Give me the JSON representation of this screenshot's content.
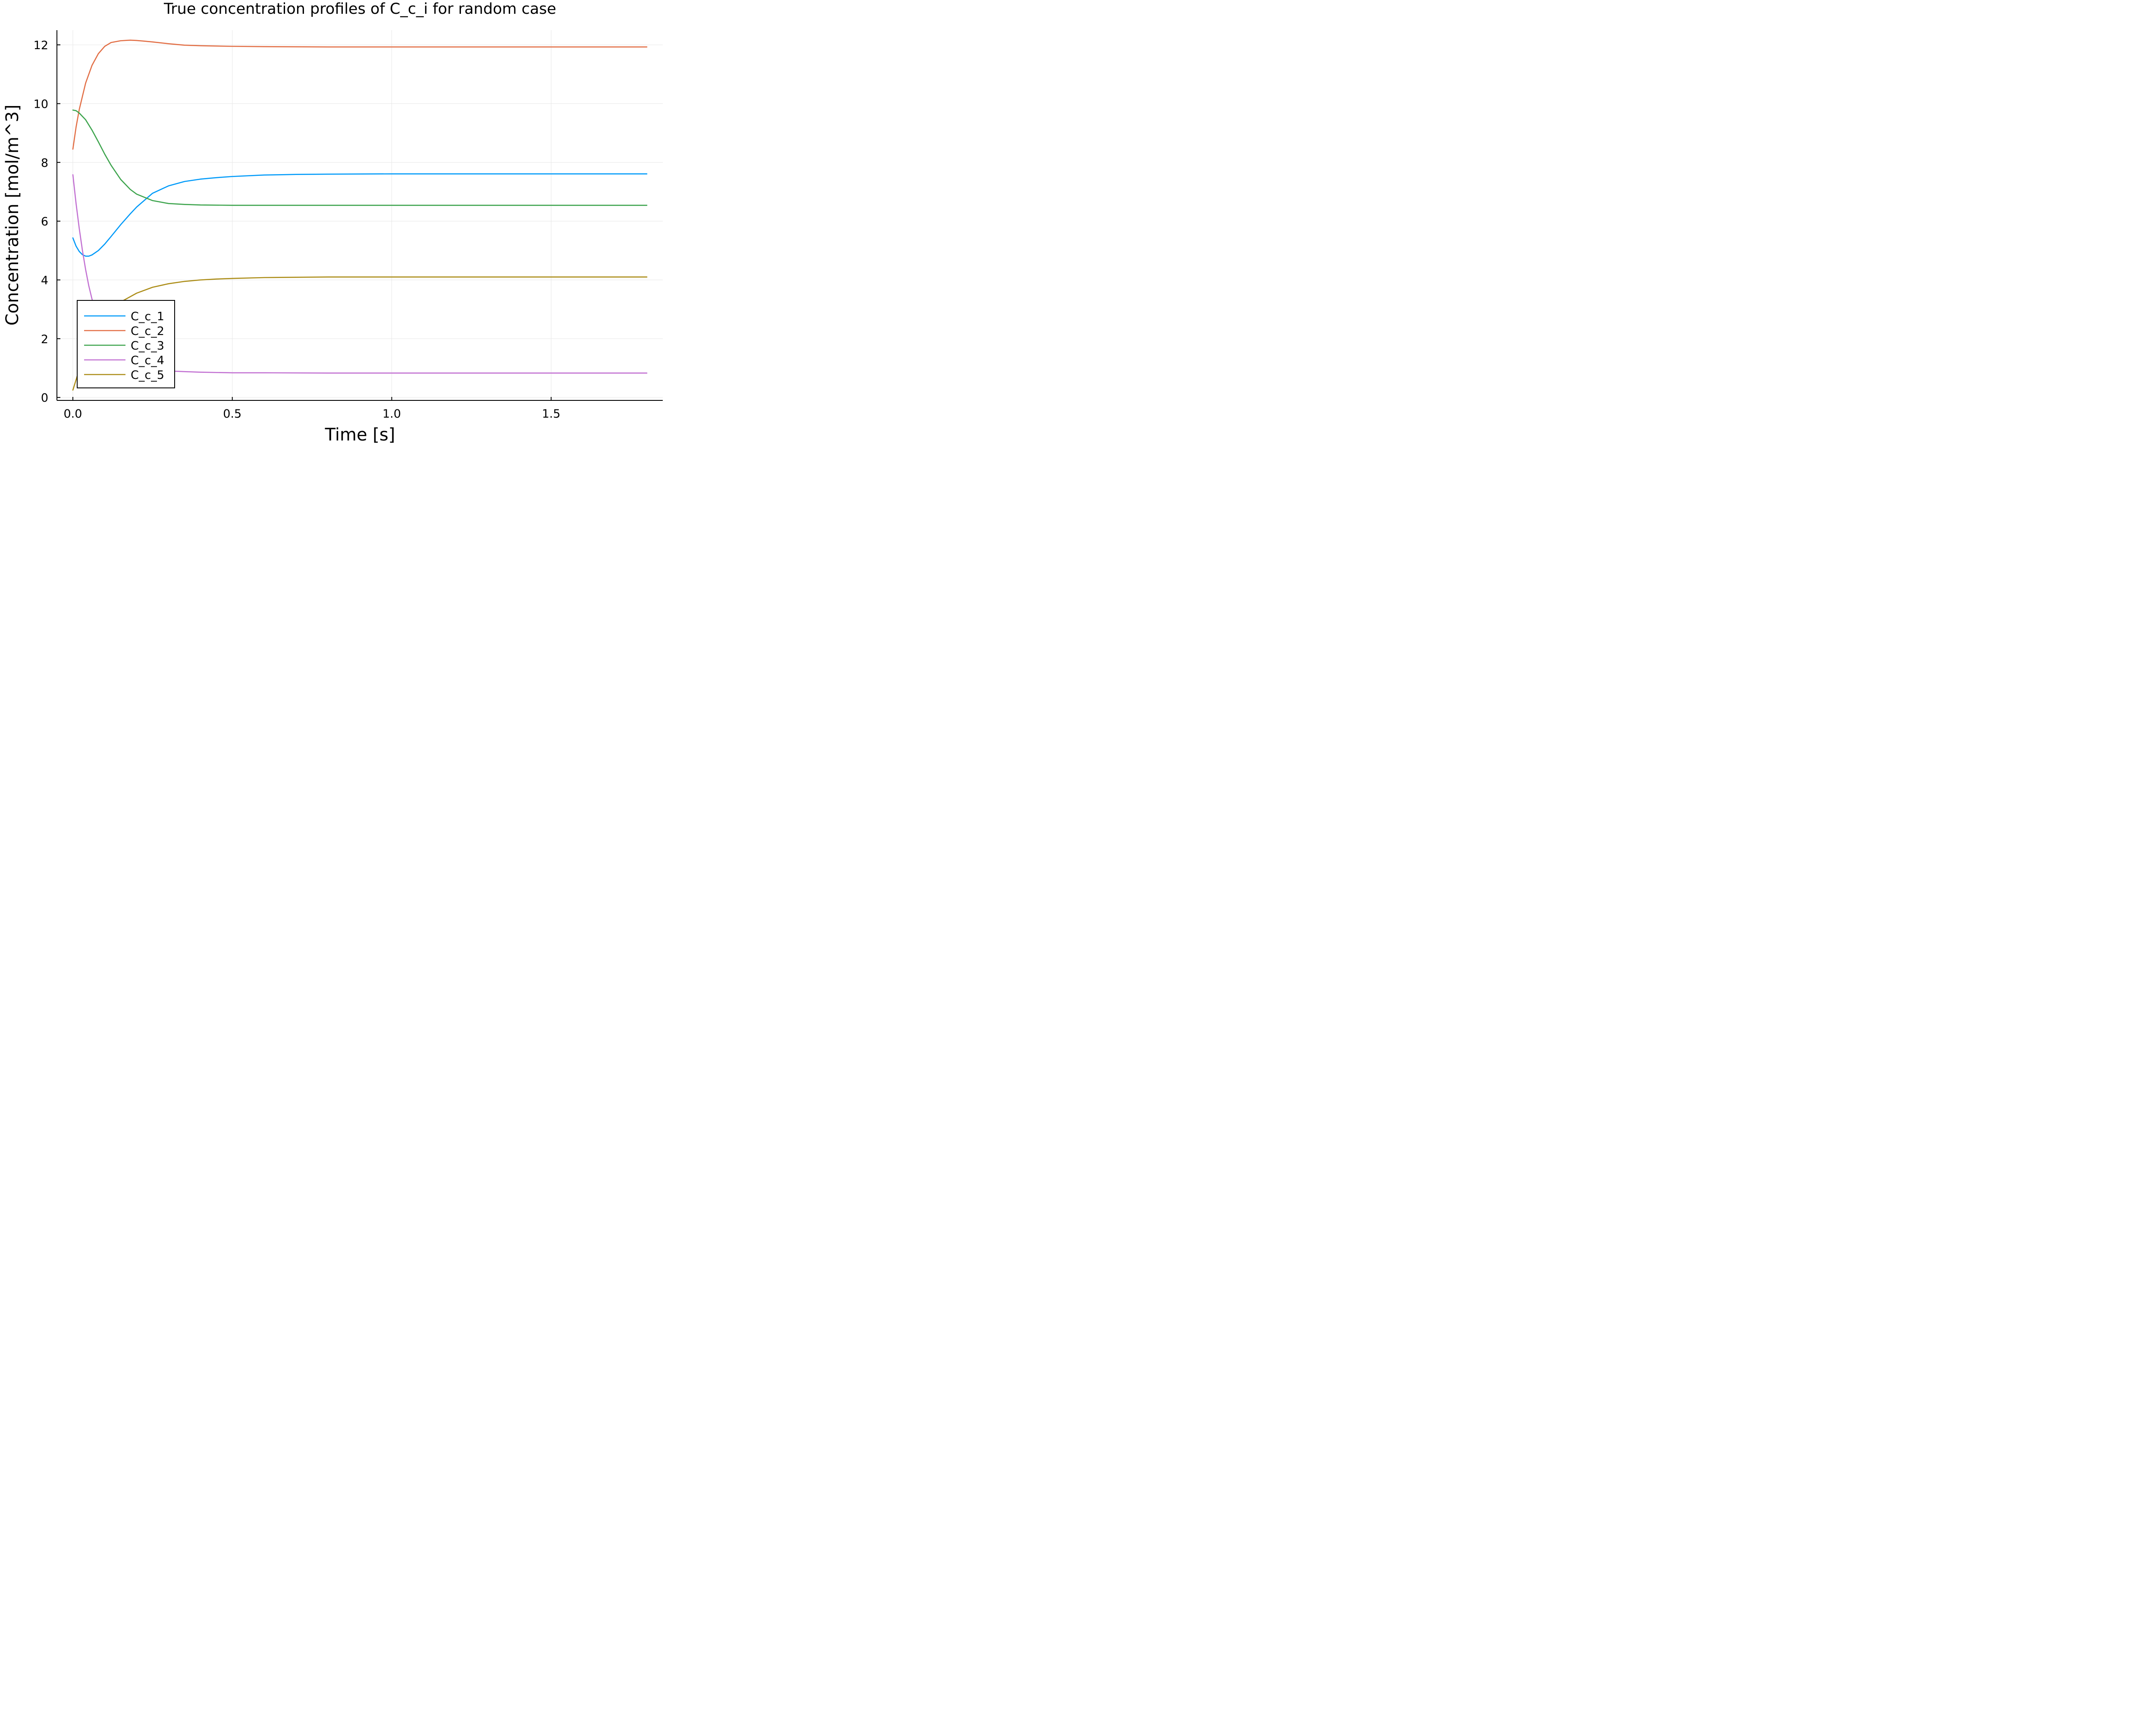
{
  "chart_data": {
    "type": "line",
    "title": "True concentration profiles of C_c_i for random case",
    "xlabel": "Time [s]",
    "ylabel": "Concentration [mol/m^3]",
    "xlim": [
      -0.05,
      1.85
    ],
    "ylim": [
      -0.1,
      12.5
    ],
    "xticks": [
      0.0,
      0.5,
      1.0,
      1.5
    ],
    "xtick_labels": [
      "0.0",
      "0.5",
      "1.0",
      "1.5"
    ],
    "yticks": [
      0,
      2,
      4,
      6,
      8,
      10,
      12
    ],
    "ytick_labels": [
      "0",
      "2",
      "4",
      "6",
      "8",
      "10",
      "12"
    ],
    "grid": true,
    "legend_position": "bottom-left",
    "series": [
      {
        "name": "C_c_1",
        "color": "#009af9",
        "x": [
          0.0,
          0.01,
          0.02,
          0.03,
          0.04,
          0.05,
          0.06,
          0.08,
          0.1,
          0.12,
          0.15,
          0.18,
          0.2,
          0.25,
          0.3,
          0.35,
          0.4,
          0.45,
          0.5,
          0.6,
          0.7,
          0.8,
          1.0,
          1.2,
          1.5,
          1.8
        ],
        "y": [
          5.43,
          5.15,
          4.97,
          4.86,
          4.81,
          4.81,
          4.85,
          5.0,
          5.22,
          5.48,
          5.88,
          6.25,
          6.48,
          6.95,
          7.2,
          7.35,
          7.43,
          7.48,
          7.52,
          7.57,
          7.59,
          7.6,
          7.61,
          7.61,
          7.61,
          7.61
        ]
      },
      {
        "name": "C_c_2",
        "color": "#e26f46",
        "x": [
          0.0,
          0.01,
          0.02,
          0.04,
          0.06,
          0.08,
          0.1,
          0.12,
          0.15,
          0.18,
          0.2,
          0.22,
          0.25,
          0.3,
          0.35,
          0.4,
          0.5,
          0.6,
          0.8,
          1.0,
          1.5,
          1.8
        ],
        "y": [
          8.45,
          9.2,
          9.8,
          10.7,
          11.3,
          11.7,
          11.95,
          12.08,
          12.14,
          12.16,
          12.15,
          12.13,
          12.1,
          12.04,
          11.99,
          11.97,
          11.95,
          11.94,
          11.93,
          11.93,
          11.93,
          11.93
        ]
      },
      {
        "name": "C_c_3",
        "color": "#3da44d",
        "x": [
          0.0,
          0.01,
          0.02,
          0.04,
          0.06,
          0.08,
          0.1,
          0.12,
          0.15,
          0.18,
          0.2,
          0.25,
          0.3,
          0.35,
          0.4,
          0.5,
          0.6,
          0.8,
          1.0,
          1.5,
          1.8
        ],
        "y": [
          9.78,
          9.76,
          9.68,
          9.45,
          9.1,
          8.7,
          8.28,
          7.9,
          7.42,
          7.08,
          6.92,
          6.7,
          6.6,
          6.57,
          6.55,
          6.54,
          6.54,
          6.54,
          6.54,
          6.54,
          6.54
        ]
      },
      {
        "name": "C_c_4",
        "color": "#c271d2",
        "x": [
          0.0,
          0.01,
          0.02,
          0.03,
          0.04,
          0.05,
          0.06,
          0.08,
          0.1,
          0.12,
          0.15,
          0.18,
          0.2,
          0.25,
          0.3,
          0.4,
          0.5,
          0.6,
          0.8,
          1.0,
          1.5,
          1.8
        ],
        "y": [
          7.58,
          6.6,
          5.75,
          5.0,
          4.35,
          3.8,
          3.35,
          2.65,
          2.15,
          1.8,
          1.45,
          1.2,
          1.1,
          0.96,
          0.9,
          0.86,
          0.84,
          0.84,
          0.83,
          0.83,
          0.83,
          0.83
        ]
      },
      {
        "name": "C_c_5",
        "color": "#ac8d18",
        "x": [
          0.0,
          0.01,
          0.02,
          0.04,
          0.06,
          0.08,
          0.1,
          0.12,
          0.15,
          0.2,
          0.25,
          0.3,
          0.35,
          0.4,
          0.45,
          0.5,
          0.6,
          0.7,
          0.8,
          1.0,
          1.5,
          1.8
        ],
        "y": [
          0.25,
          0.6,
          0.95,
          1.55,
          2.05,
          2.45,
          2.75,
          3.0,
          3.25,
          3.55,
          3.75,
          3.87,
          3.95,
          4.0,
          4.03,
          4.05,
          4.08,
          4.09,
          4.1,
          4.1,
          4.1,
          4.1
        ]
      }
    ]
  }
}
